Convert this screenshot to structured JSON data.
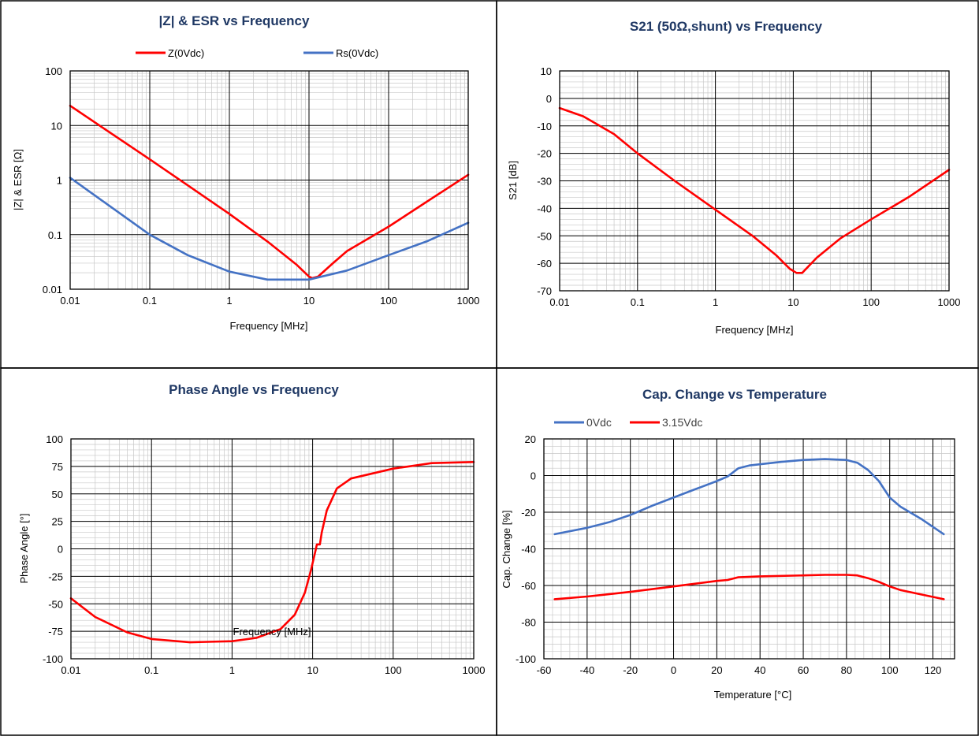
{
  "chart_data": [
    {
      "id": "impedance",
      "type": "line",
      "title": "|Z| & ESR vs Frequency",
      "xlabel": "Frequency [MHz]",
      "ylabel": "|Z| & ESR [Ω]",
      "xscale": "log",
      "yscale": "log",
      "xlim": [
        0.01,
        1000
      ],
      "ylim": [
        0.01,
        100
      ],
      "xticks": [
        "0.01",
        "0.1",
        "1",
        "10",
        "100",
        "1000"
      ],
      "yticks": [
        "100",
        "10",
        "1",
        "0.1",
        "0.01"
      ],
      "grid": true,
      "legend": "top",
      "series": [
        {
          "name": "Z(0Vdc)",
          "color": "#ff0000",
          "points": [
            [
              0.01,
              23
            ],
            [
              0.1,
              2.4
            ],
            [
              1,
              0.24
            ],
            [
              3,
              0.075
            ],
            [
              7,
              0.028
            ],
            [
              10,
              0.017
            ],
            [
              11,
              0.016
            ],
            [
              13,
              0.017
            ],
            [
              20,
              0.03
            ],
            [
              30,
              0.05
            ],
            [
              100,
              0.14
            ],
            [
              300,
              0.4
            ],
            [
              1000,
              1.25
            ]
          ]
        },
        {
          "name": "Rs(0Vdc)",
          "color": "#4472c4",
          "points": [
            [
              0.01,
              1.1
            ],
            [
              0.03,
              0.35
            ],
            [
              0.1,
              0.1
            ],
            [
              0.3,
              0.042
            ],
            [
              1,
              0.021
            ],
            [
              3,
              0.015
            ],
            [
              10,
              0.015
            ],
            [
              30,
              0.022
            ],
            [
              100,
              0.042
            ],
            [
              300,
              0.075
            ],
            [
              1000,
              0.165
            ]
          ]
        }
      ]
    },
    {
      "id": "s21",
      "type": "line",
      "title": "S21 (50Ω,shunt) vs Frequency",
      "xlabel": "Frequency [MHz]",
      "ylabel": "S21 [dB]",
      "xscale": "log",
      "xlim": [
        0.01,
        1000
      ],
      "ylim": [
        -70,
        10
      ],
      "xticks": [
        "0.01",
        "0.1",
        "1",
        "10",
        "100",
        "1000"
      ],
      "yticks": [
        "10",
        "0",
        "-10",
        "-20",
        "-30",
        "-40",
        "-50",
        "-60",
        "-70"
      ],
      "grid": true,
      "series": [
        {
          "name": "",
          "color": "#ff0000",
          "points": [
            [
              0.01,
              -3.5
            ],
            [
              0.02,
              -6.5
            ],
            [
              0.05,
              -13
            ],
            [
              0.1,
              -20
            ],
            [
              0.3,
              -30
            ],
            [
              1,
              -40.5
            ],
            [
              3,
              -50
            ],
            [
              6,
              -57
            ],
            [
              9,
              -62
            ],
            [
              11,
              -63.5
            ],
            [
              13,
              -63.5
            ],
            [
              20,
              -58
            ],
            [
              40,
              -51
            ],
            [
              100,
              -44
            ],
            [
              300,
              -36
            ],
            [
              1000,
              -26
            ]
          ]
        }
      ]
    },
    {
      "id": "phase",
      "type": "line",
      "title": "Phase Angle vs Frequency",
      "xlabel": "Frequency [MHz]",
      "ylabel": "Phase Angle [°]",
      "xscale": "log",
      "xlim": [
        0.01,
        1000
      ],
      "ylim": [
        -100,
        100
      ],
      "xticks": [
        "0.01",
        "0.1",
        "1",
        "10",
        "100",
        "1000"
      ],
      "yticks": [
        "100",
        "75",
        "50",
        "25",
        "0",
        "-25",
        "-50",
        "-75",
        "-100"
      ],
      "grid": true,
      "series": [
        {
          "name": "",
          "color": "#ff0000",
          "points": [
            [
              0.01,
              -45
            ],
            [
              0.02,
              -62
            ],
            [
              0.05,
              -76
            ],
            [
              0.1,
              -82
            ],
            [
              0.3,
              -85
            ],
            [
              1,
              -84
            ],
            [
              2,
              -81
            ],
            [
              4,
              -73
            ],
            [
              6,
              -60
            ],
            [
              8,
              -40
            ],
            [
              9.5,
              -20
            ],
            [
              11,
              0
            ],
            [
              11.3,
              4
            ],
            [
              12.3,
              4
            ],
            [
              13,
              15
            ],
            [
              15,
              35
            ],
            [
              20,
              55
            ],
            [
              30,
              64
            ],
            [
              100,
              73
            ],
            [
              300,
              78
            ],
            [
              1000,
              79
            ]
          ]
        }
      ]
    },
    {
      "id": "temperature",
      "type": "line",
      "title": "Cap. Change vs Temperature",
      "xlabel": "Temperature [°C]",
      "ylabel": "Cap. Change [%]",
      "xlim": [
        -60,
        130
      ],
      "ylim": [
        -100,
        20
      ],
      "xticks": [
        "-60",
        "-40",
        "-20",
        "0",
        "20",
        "40",
        "60",
        "80",
        "100",
        "120"
      ],
      "yticks": [
        "20",
        "0",
        "-20",
        "-40",
        "-60",
        "-80",
        "-100"
      ],
      "grid": true,
      "legend": "top-left",
      "series": [
        {
          "name": "0Vdc",
          "color": "#4472c4",
          "points": [
            [
              -55,
              -32
            ],
            [
              -40,
              -28.5
            ],
            [
              -30,
              -25.5
            ],
            [
              -20,
              -21.5
            ],
            [
              -10,
              -16.5
            ],
            [
              0,
              -12
            ],
            [
              10,
              -7.5
            ],
            [
              20,
              -3
            ],
            [
              25,
              -0.5
            ],
            [
              30,
              4
            ],
            [
              35,
              5.5
            ],
            [
              50,
              7.5
            ],
            [
              60,
              8.5
            ],
            [
              70,
              9
            ],
            [
              80,
              8.5
            ],
            [
              85,
              7
            ],
            [
              90,
              3
            ],
            [
              95,
              -3
            ],
            [
              100,
              -12
            ],
            [
              105,
              -17
            ],
            [
              115,
              -24
            ],
            [
              125,
              -32
            ]
          ]
        },
        {
          "name": "3.15Vdc",
          "color": "#ff0000",
          "points": [
            [
              -55,
              -67.5
            ],
            [
              -40,
              -66
            ],
            [
              -20,
              -63.5
            ],
            [
              0,
              -60.5
            ],
            [
              20,
              -57.5
            ],
            [
              25,
              -57
            ],
            [
              30,
              -55.5
            ],
            [
              40,
              -55
            ],
            [
              60,
              -54.5
            ],
            [
              70,
              -54.2
            ],
            [
              80,
              -54.2
            ],
            [
              85,
              -54.5
            ],
            [
              90,
              -56
            ],
            [
              95,
              -58
            ],
            [
              100,
              -60.5
            ],
            [
              105,
              -62.5
            ],
            [
              115,
              -65
            ],
            [
              125,
              -67.5
            ]
          ]
        }
      ]
    }
  ]
}
